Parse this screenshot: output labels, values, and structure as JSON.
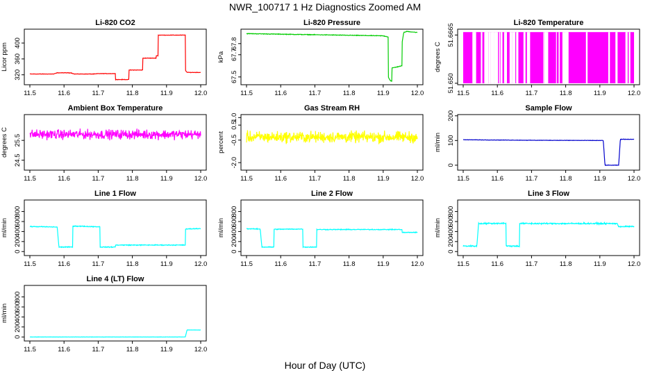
{
  "figure": {
    "title": "NWR_100717  1 Hz Diagnostics Zoomed AM",
    "xlabel": "Hour of Day (UTC)"
  },
  "chart_data": [
    {
      "type": "line",
      "title": "Li-820 CO2",
      "ylabel": "Licor ppm",
      "color": "#ff0000",
      "xlim": [
        11.5,
        12.0
      ],
      "ylim": [
        295,
        435
      ],
      "x_ticks": [
        "11.5",
        "11.6",
        "11.7",
        "11.8",
        "11.9",
        "12.0"
      ],
      "y_ticks": [
        {
          "v": 320,
          "label": "320"
        },
        {
          "v": 360,
          "label": "360"
        },
        {
          "v": 400,
          "label": "400"
        }
      ],
      "noise": 0.8,
      "solid": false,
      "points": [
        [
          11.5,
          322
        ],
        [
          11.57,
          322
        ],
        [
          11.58,
          325
        ],
        [
          11.62,
          325
        ],
        [
          11.63,
          322
        ],
        [
          11.69,
          322
        ],
        [
          11.7,
          323
        ],
        [
          11.75,
          323
        ],
        [
          11.75,
          308
        ],
        [
          11.79,
          308
        ],
        [
          11.79,
          332
        ],
        [
          11.83,
          332
        ],
        [
          11.83,
          362
        ],
        [
          11.87,
          362
        ],
        [
          11.87,
          368
        ],
        [
          11.875,
          368
        ],
        [
          11.875,
          420
        ],
        [
          11.955,
          420
        ],
        [
          11.955,
          332
        ],
        [
          11.96,
          326
        ],
        [
          12.0,
          326
        ]
      ]
    },
    {
      "type": "line",
      "title": "Li-820 Pressure",
      "ylabel": "kPa",
      "color": "#00cc00",
      "xlim": [
        11.5,
        12.0
      ],
      "ylim": [
        67.43,
        67.93
      ],
      "x_ticks": [
        "11.5",
        "11.6",
        "11.7",
        "11.8",
        "11.9",
        "12.0"
      ],
      "y_ticks": [
        {
          "v": 67.5,
          "label": "67.5"
        },
        {
          "v": 67.7,
          "label": "67.7"
        },
        {
          "v": 67.8,
          "label": "67.8"
        }
      ],
      "noise": 0.004,
      "solid": false,
      "points": [
        [
          11.5,
          67.89
        ],
        [
          11.6,
          67.885
        ],
        [
          11.7,
          67.88
        ],
        [
          11.8,
          67.875
        ],
        [
          11.9,
          67.87
        ],
        [
          11.915,
          67.86
        ],
        [
          11.915,
          67.5
        ],
        [
          11.92,
          67.47
        ],
        [
          11.925,
          67.46
        ],
        [
          11.925,
          67.58
        ],
        [
          11.955,
          67.6
        ],
        [
          11.955,
          67.8
        ],
        [
          11.96,
          67.9
        ],
        [
          11.97,
          67.91
        ],
        [
          12.0,
          67.9
        ]
      ]
    },
    {
      "type": "line",
      "title": "Li-820 Temperature",
      "ylabel": "degrees C",
      "color": "#ff00ff",
      "xlim": [
        11.5,
        12.0
      ],
      "ylim": [
        51.6495,
        51.6685
      ],
      "x_ticks": [
        "11.5",
        "11.6",
        "11.7",
        "11.8",
        "11.9",
        "12.0"
      ],
      "y_ticks": [
        {
          "v": 51.65,
          "label": "51.650"
        },
        {
          "v": 51.6665,
          "label": "51.6665"
        }
      ],
      "noise": 0,
      "solid": true,
      "solid_range": [
        51.65,
        51.6675
      ],
      "points": [
        [
          11.5,
          51.65
        ],
        [
          12.0,
          51.6675
        ]
      ]
    },
    {
      "type": "line",
      "title": "Ambient Box Temperature",
      "ylabel": "degrees C",
      "color": "#ff00ff",
      "xlim": [
        11.5,
        12.0
      ],
      "ylim": [
        24.0,
        26.8
      ],
      "x_ticks": [
        "11.5",
        "11.6",
        "11.7",
        "11.8",
        "11.9",
        "12.0"
      ],
      "y_ticks": [
        {
          "v": 24.5,
          "label": "24.5"
        },
        {
          "v": 25.5,
          "label": "25.5"
        }
      ],
      "noise": 0.35,
      "solid": false,
      "points": [
        [
          11.5,
          25.8
        ],
        [
          12.0,
          25.8
        ]
      ]
    },
    {
      "type": "line",
      "title": "Gas Stream RH",
      "ylabel": "percent",
      "color": "#ffff00",
      "xlim": [
        11.5,
        12.0
      ],
      "ylim": [
        -2.5,
        1.2
      ],
      "x_ticks": [
        "11.5",
        "11.6",
        "11.7",
        "11.8",
        "11.9",
        "12.0"
      ],
      "y_ticks": [
        {
          "v": -2.0,
          "label": "-2.0"
        },
        {
          "v": -0.5,
          "label": "-0.5"
        },
        {
          "v": 0.5,
          "label": "0.5"
        },
        {
          "v": 1.0,
          "label": "1.0"
        }
      ],
      "noise": 0.55,
      "solid": false,
      "points": [
        [
          11.5,
          -0.3
        ],
        [
          12.0,
          -0.3
        ]
      ]
    },
    {
      "type": "line",
      "title": "Sample Flow",
      "ylabel": "ml/min",
      "color": "#0000cc",
      "xlim": [
        11.5,
        12.0
      ],
      "ylim": [
        -20,
        205
      ],
      "x_ticks": [
        "11.5",
        "11.6",
        "11.7",
        "11.8",
        "11.9",
        "12.0"
      ],
      "y_ticks": [
        {
          "v": 0,
          "label": "0"
        },
        {
          "v": 100,
          "label": "100"
        },
        {
          "v": 200,
          "label": "200"
        }
      ],
      "noise": 1.2,
      "solid": false,
      "points": [
        [
          11.5,
          103
        ],
        [
          11.7,
          101
        ],
        [
          11.91,
          100
        ],
        [
          11.915,
          0
        ],
        [
          11.955,
          0
        ],
        [
          11.96,
          105
        ],
        [
          12.0,
          105
        ]
      ]
    },
    {
      "type": "line",
      "title": "Line 1 Flow",
      "ylabel": "ml/min",
      "color": "#00ffff",
      "xlim": [
        11.5,
        12.0
      ],
      "ylim": [
        -80,
        1030
      ],
      "x_ticks": [
        "11.5",
        "11.6",
        "11.7",
        "11.8",
        "11.9",
        "12.0"
      ],
      "y_ticks": [
        {
          "v": 0,
          "label": "0"
        },
        {
          "v": 200,
          "label": "200"
        },
        {
          "v": 400,
          "label": "400"
        },
        {
          "v": 600,
          "label": "600"
        },
        {
          "v": 800,
          "label": "800"
        }
      ],
      "noise": 12,
      "solid": false,
      "points": [
        [
          11.5,
          500
        ],
        [
          11.58,
          490
        ],
        [
          11.585,
          90
        ],
        [
          11.625,
          90
        ],
        [
          11.625,
          510
        ],
        [
          11.705,
          495
        ],
        [
          11.705,
          90
        ],
        [
          11.75,
          90
        ],
        [
          11.75,
          130
        ],
        [
          11.955,
          130
        ],
        [
          11.955,
          450
        ],
        [
          12.0,
          460
        ]
      ]
    },
    {
      "type": "line",
      "title": "Line 2 Flow",
      "ylabel": "ml/min",
      "color": "#00ffff",
      "xlim": [
        11.5,
        12.0
      ],
      "ylim": [
        -80,
        1030
      ],
      "x_ticks": [
        "11.5",
        "11.6",
        "11.7",
        "11.8",
        "11.9",
        "12.0"
      ],
      "y_ticks": [
        {
          "v": 0,
          "label": "0"
        },
        {
          "v": 200,
          "label": "200"
        },
        {
          "v": 400,
          "label": "400"
        },
        {
          "v": 600,
          "label": "600"
        },
        {
          "v": 800,
          "label": "800"
        }
      ],
      "noise": 12,
      "solid": false,
      "points": [
        [
          11.5,
          455
        ],
        [
          11.54,
          450
        ],
        [
          11.545,
          90
        ],
        [
          11.58,
          90
        ],
        [
          11.58,
          445
        ],
        [
          11.665,
          450
        ],
        [
          11.665,
          90
        ],
        [
          11.705,
          90
        ],
        [
          11.705,
          440
        ],
        [
          11.955,
          440
        ],
        [
          11.955,
          380
        ],
        [
          12.0,
          385
        ]
      ]
    },
    {
      "type": "line",
      "title": "Line 3 Flow",
      "ylabel": "ml/min",
      "color": "#00ffff",
      "xlim": [
        11.5,
        12.0
      ],
      "ylim": [
        -80,
        1030
      ],
      "x_ticks": [
        "11.5",
        "11.6",
        "11.7",
        "11.8",
        "11.9",
        "12.0"
      ],
      "y_ticks": [
        {
          "v": 0,
          "label": "0"
        },
        {
          "v": 200,
          "label": "200"
        },
        {
          "v": 400,
          "label": "400"
        },
        {
          "v": 600,
          "label": "600"
        },
        {
          "v": 800,
          "label": "800"
        }
      ],
      "noise": 20,
      "solid": false,
      "points": [
        [
          11.5,
          110
        ],
        [
          11.54,
          110
        ],
        [
          11.545,
          560
        ],
        [
          11.625,
          565
        ],
        [
          11.625,
          110
        ],
        [
          11.665,
          110
        ],
        [
          11.665,
          560
        ],
        [
          11.95,
          560
        ],
        [
          11.955,
          500
        ],
        [
          12.0,
          500
        ]
      ]
    },
    {
      "type": "line",
      "title": "Line 4 (LT) Flow",
      "ylabel": "ml/min",
      "color": "#00ffff",
      "xlim": [
        11.5,
        12.0
      ],
      "ylim": [
        -80,
        1030
      ],
      "x_ticks": [
        "11.5",
        "11.6",
        "11.7",
        "11.8",
        "11.9",
        "12.0"
      ],
      "y_ticks": [
        {
          "v": 0,
          "label": "0"
        },
        {
          "v": 200,
          "label": "200"
        },
        {
          "v": 400,
          "label": "400"
        },
        {
          "v": 600,
          "label": "600"
        },
        {
          "v": 800,
          "label": "800"
        }
      ],
      "noise": 3,
      "solid": false,
      "points": [
        [
          11.5,
          0
        ],
        [
          11.955,
          0
        ],
        [
          11.96,
          140
        ],
        [
          12.0,
          140
        ]
      ]
    }
  ]
}
